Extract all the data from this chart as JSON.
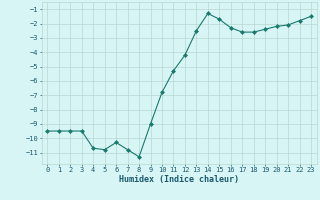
{
  "x": [
    0,
    1,
    2,
    3,
    4,
    5,
    6,
    7,
    8,
    9,
    10,
    11,
    12,
    13,
    14,
    15,
    16,
    17,
    18,
    19,
    20,
    21,
    22,
    23
  ],
  "y": [
    -9.5,
    -9.5,
    -9.5,
    -9.5,
    -10.7,
    -10.8,
    -10.3,
    -10.8,
    -11.3,
    -9.0,
    -6.8,
    -5.3,
    -4.2,
    -2.5,
    -1.3,
    -1.7,
    -2.3,
    -2.6,
    -2.6,
    -2.4,
    -2.2,
    -2.1,
    -1.8,
    -1.5
  ],
  "line_color": "#1a7a6e",
  "marker": "D",
  "marker_size": 2,
  "bg_color": "#d8f5f5",
  "grid_color": "#b8d8d0",
  "tick_label_color": "#1a5a6e",
  "xlabel": "Humidex (Indice chaleur)",
  "xlabel_color": "#1a5a6e",
  "ylim": [
    -11.8,
    -0.5
  ],
  "xlim": [
    -0.5,
    23.5
  ],
  "yticks": [
    -11,
    -10,
    -9,
    -8,
    -7,
    -6,
    -5,
    -4,
    -3,
    -2,
    -1
  ],
  "xticks": [
    0,
    1,
    2,
    3,
    4,
    5,
    6,
    7,
    8,
    9,
    10,
    11,
    12,
    13,
    14,
    15,
    16,
    17,
    18,
    19,
    20,
    21,
    22,
    23
  ],
  "figsize": [
    3.2,
    2.0
  ],
  "dpi": 100
}
